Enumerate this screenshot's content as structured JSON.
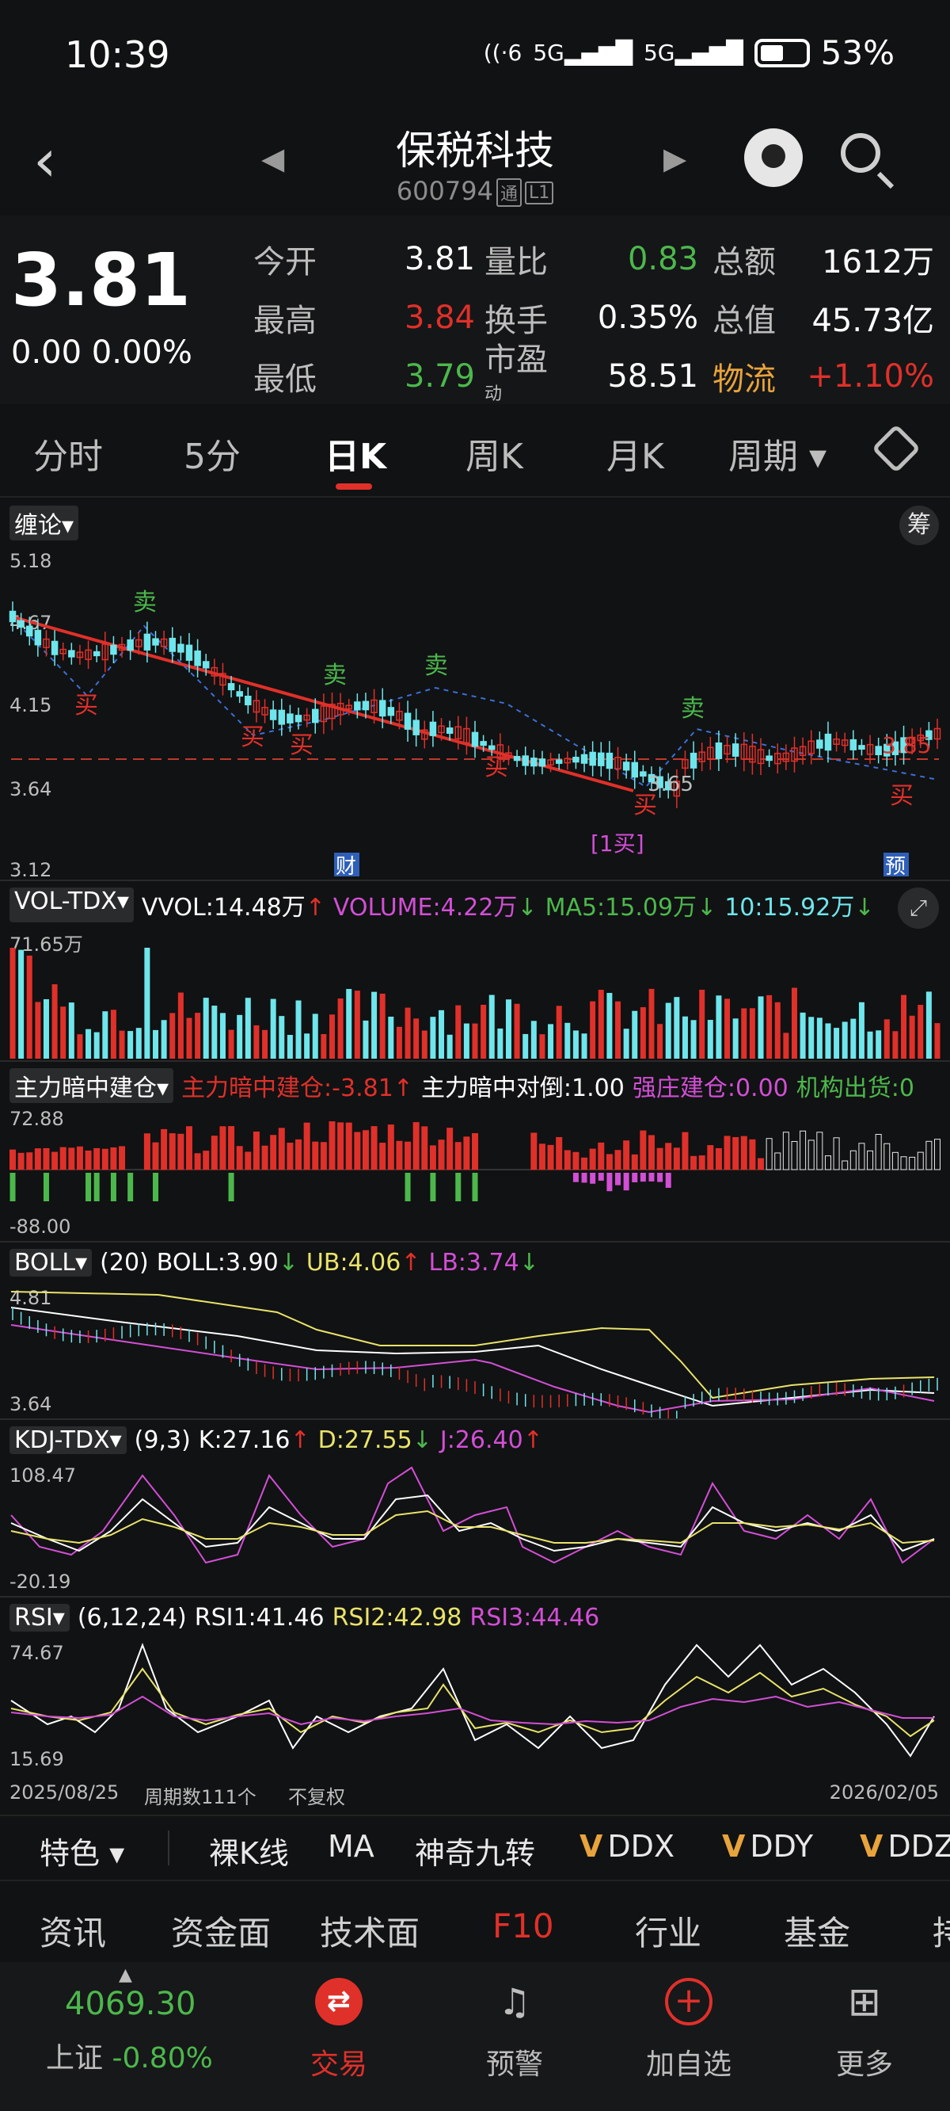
{
  "status": {
    "time": "10:39",
    "net1": "6",
    "net2": "5G",
    "net3": "5G",
    "battery": "53%"
  },
  "header": {
    "name": "保税科技",
    "code": "600794",
    "tag1": "通",
    "tag2": "L1"
  },
  "quote": {
    "price": "3.81",
    "change": "0.00 0.00%",
    "rows": [
      {
        "l1": "今开",
        "v1": "3.81",
        "l2": "量比",
        "v2": "0.83",
        "l3": "总额",
        "v3": "1612万"
      },
      {
        "l1": "最高",
        "v1": "3.84",
        "l2": "换手",
        "v2": "0.35%",
        "l3": "总值",
        "v3": "45.73亿"
      },
      {
        "l1": "最低",
        "v1": "3.79",
        "l2": "市盈",
        "l2sup": "动",
        "v2": "58.51",
        "l3": "物流",
        "v3": "+1.10%"
      }
    ]
  },
  "colors": {
    "up": "#e0302a",
    "down": "#4cb84c",
    "cyan": "#6ee6ec",
    "yellow": "#e9e36a",
    "magenta": "#d24fd6",
    "orange": "#e8a33c"
  },
  "tabs": [
    "分时",
    "5分",
    "日K",
    "周K",
    "月K",
    "周期"
  ],
  "kline": {
    "indicator": "缠论",
    "chip_btn": "筹",
    "yticks": [
      "5.18",
      "4.67",
      "4.15",
      "3.64",
      "3.12"
    ],
    "right_price": "3.85",
    "low_label": "3.65",
    "marks": {
      "sell": "卖",
      "buy": "买",
      "cai": "财",
      "first_buy": "[1买]",
      "yu": "预"
    }
  },
  "vol": {
    "name": "VOL-TDX",
    "vvol": "VVOL:14.48万",
    "volume": "VOLUME:4.22万",
    "ma5": "MA5:15.09万",
    "ma10": "10:15.92万",
    "top": "71.65万"
  },
  "zl": {
    "name": "主力暗中建仓",
    "v1": "主力暗中建仓:-3.81",
    "v2": "主力暗中对倒:1.00",
    "v3": "强庄建仓:0.00",
    "v4": "机构出货:0",
    "top": "72.88",
    "bottom": "-88.00"
  },
  "boll": {
    "name": "BOLL",
    "param": "(20)",
    "boll": "BOLL:3.90",
    "ub": "UB:4.06",
    "lb": "LB:3.74",
    "top": "4.81",
    "bottom": "3.64"
  },
  "kdj": {
    "name": "KDJ-TDX",
    "param": "(9,3)",
    "k": "K:27.16",
    "d": "D:27.55",
    "j": "J:26.40",
    "top": "108.47",
    "bottom": "-20.19"
  },
  "rsi": {
    "name": "RSI",
    "param": "(6,12,24)",
    "r1": "RSI1:41.46",
    "r2": "RSI2:42.98",
    "r3": "RSI3:44.46",
    "top": "74.67",
    "bottom": "15.69"
  },
  "xaxis": {
    "start": "2025/08/25",
    "count": "周期数111个",
    "adj": "不复权",
    "end": "2026/02/05"
  },
  "strip": [
    "特色",
    "裸K线",
    "MA",
    "神奇九转",
    "DDX",
    "DDY",
    "DDZ"
  ],
  "info_tabs": [
    "资讯",
    "资金面",
    "技术面",
    "F10",
    "行业",
    "基金",
    "持"
  ],
  "nav": {
    "index_value": "4069.30",
    "index_name": "上证",
    "index_change": "-0.80%",
    "trade": "交易",
    "alert": "预警",
    "add": "加自选",
    "more": "更多"
  }
}
